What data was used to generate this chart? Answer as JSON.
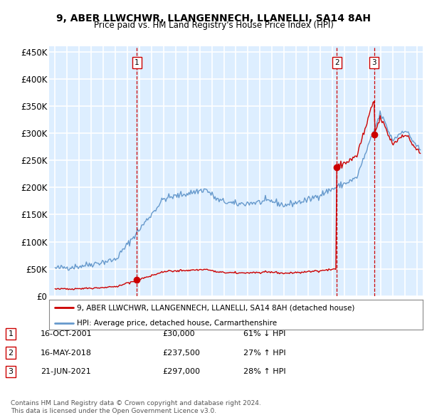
{
  "title": "9, ABER LLWCHWR, LLANGENNECH, LLANELLI, SA14 8AH",
  "subtitle": "Price paid vs. HM Land Registry's House Price Index (HPI)",
  "legend_line1": "9, ABER LLWCHWR, LLANGENNECH, LLANELLI, SA14 8AH (detached house)",
  "legend_line2": "HPI: Average price, detached house, Carmarthenshire",
  "table_rows": [
    [
      "1",
      "16-OCT-2001",
      "£30,000",
      "61% ↓ HPI"
    ],
    [
      "2",
      "16-MAY-2018",
      "£237,500",
      "27% ↑ HPI"
    ],
    [
      "3",
      "21-JUN-2021",
      "£297,000",
      "28% ↑ HPI"
    ]
  ],
  "footnote1": "Contains HM Land Registry data © Crown copyright and database right 2024.",
  "footnote2": "This data is licensed under the Open Government Licence v3.0.",
  "red_color": "#cc0000",
  "blue_color": "#6699cc",
  "bg_color": "#ddeeff",
  "grid_color": "#ffffff",
  "sale_years": [
    2001.79,
    2018.37,
    2021.47
  ],
  "sale_prices": [
    30000,
    237500,
    297000
  ],
  "ylim": [
    0,
    460000
  ],
  "xlim_start": 1994.5,
  "xlim_end": 2025.5
}
